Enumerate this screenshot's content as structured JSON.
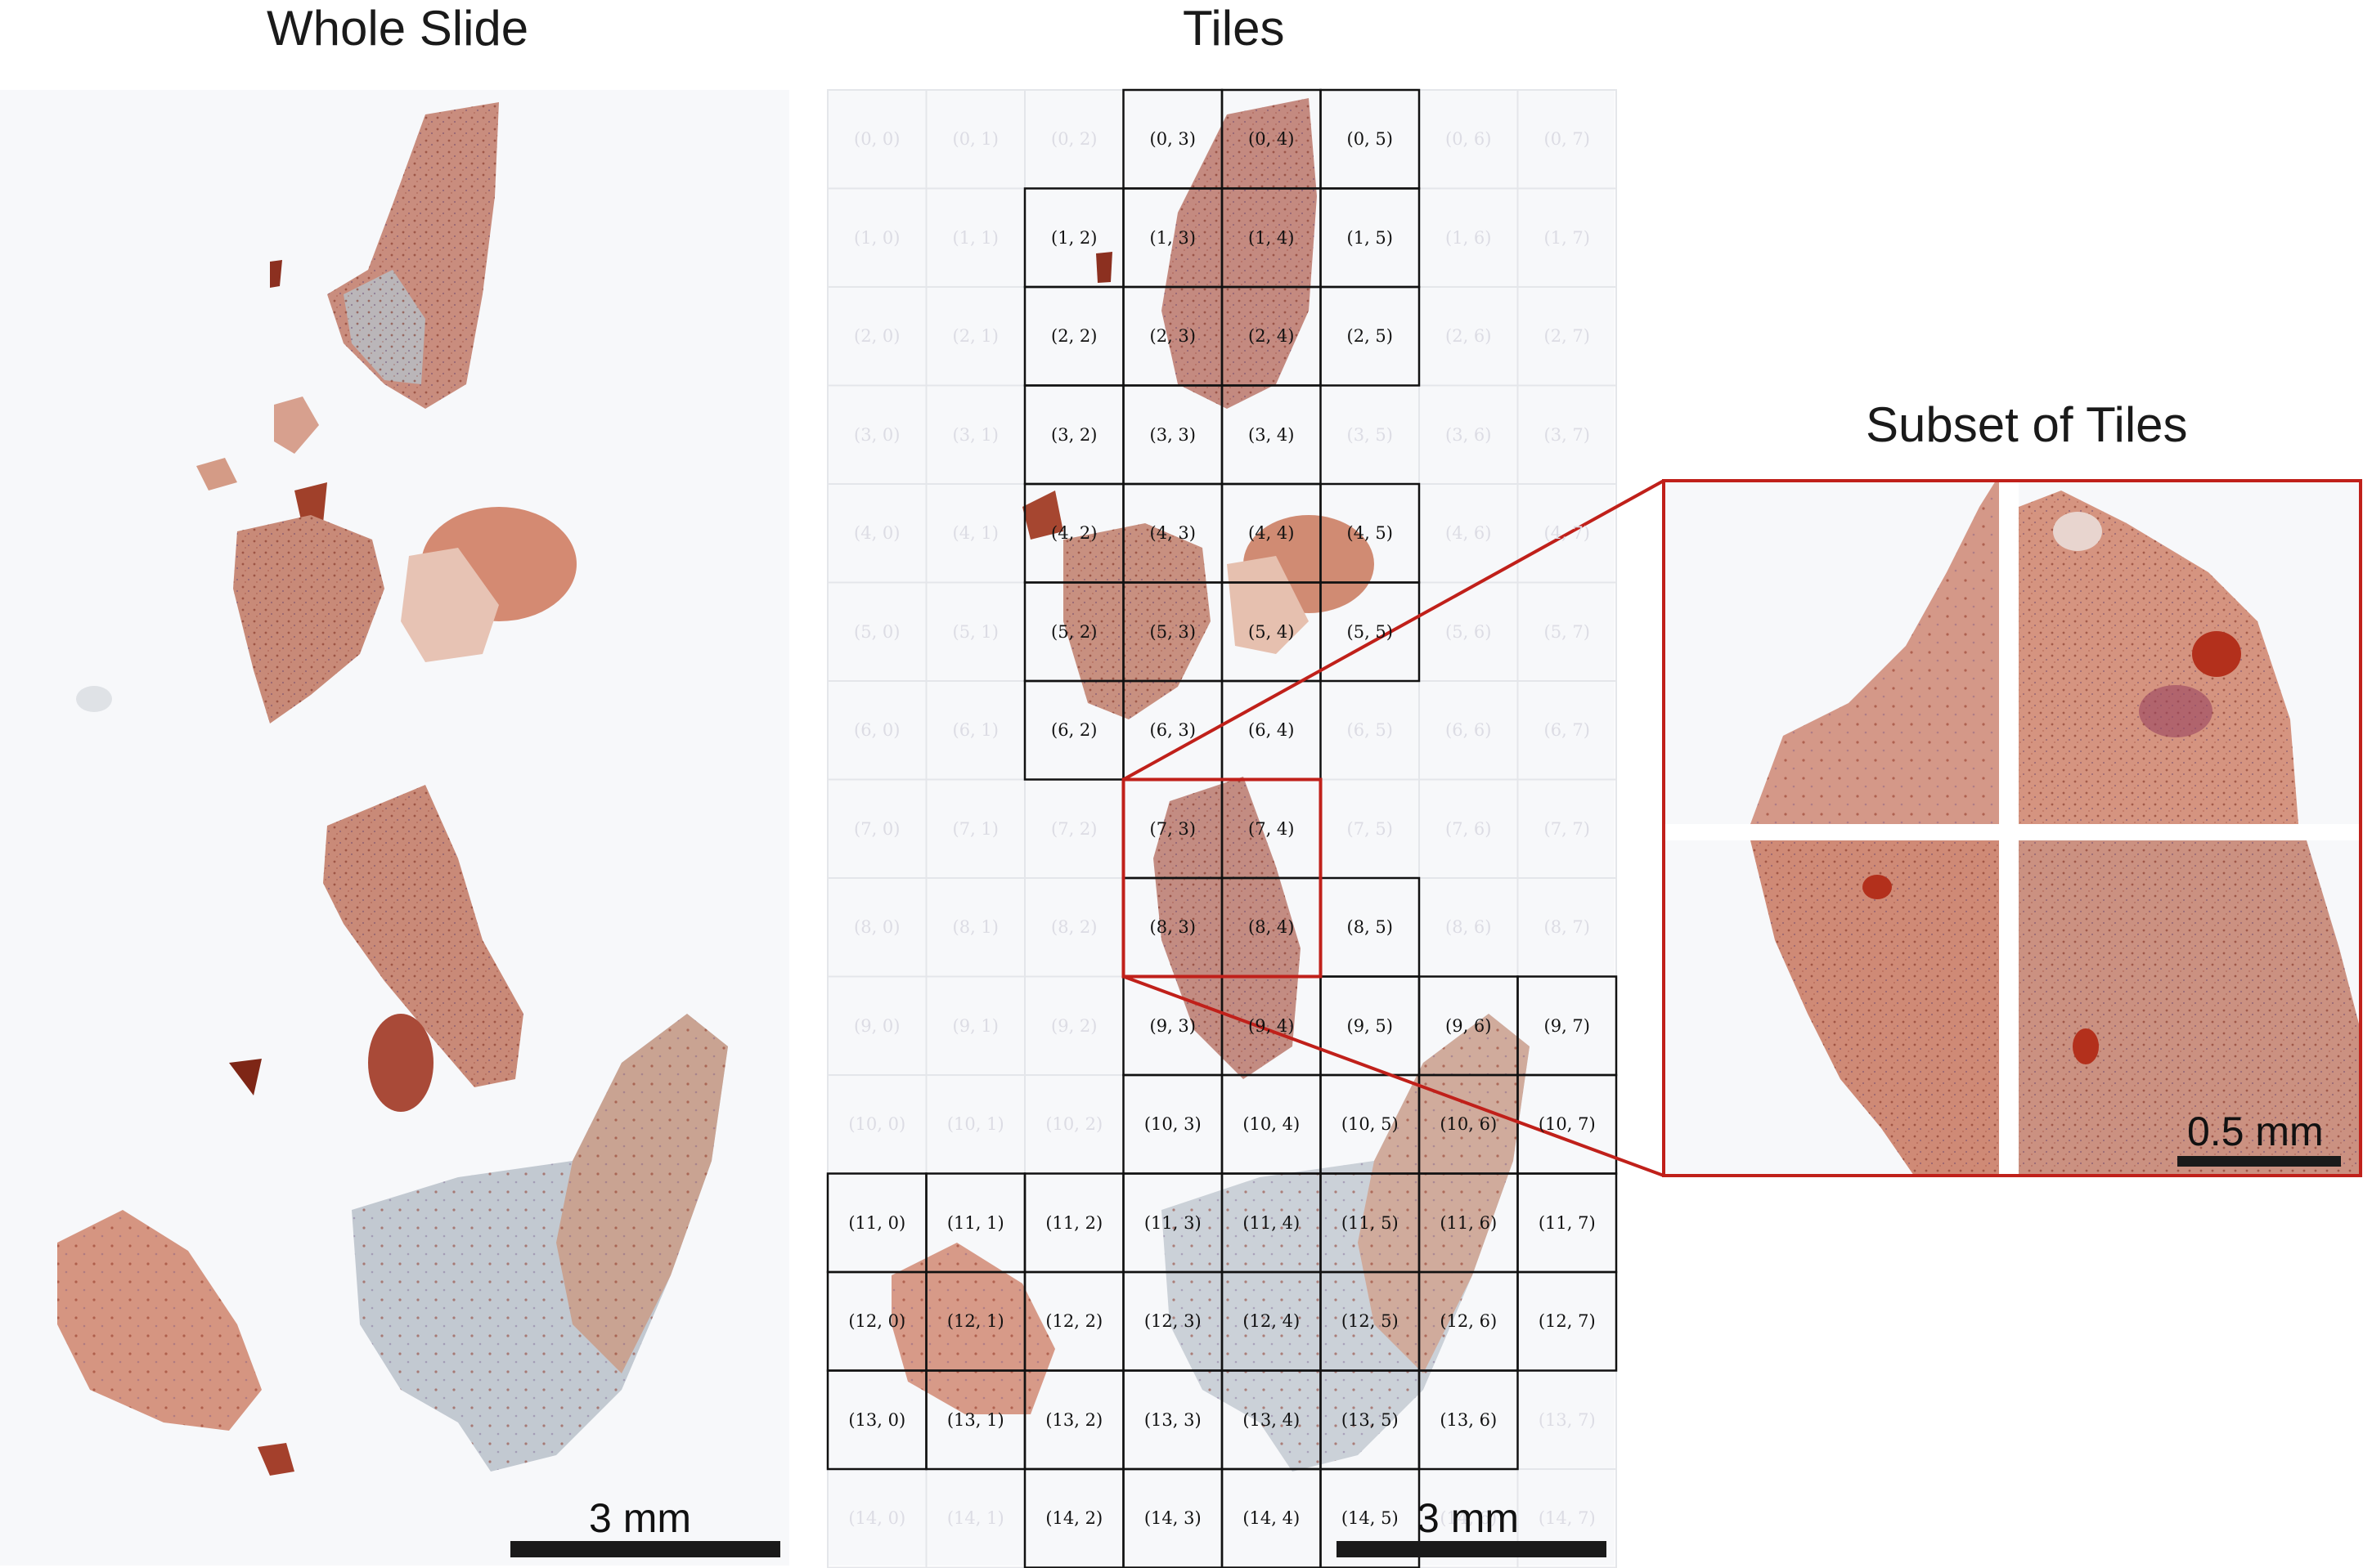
{
  "titles": {
    "whole_slide": "Whole Slide",
    "tiles": "Tiles",
    "subset": "Subset of Tiles"
  },
  "scalebars": {
    "whole_slide": "3 mm",
    "tiles": "3 mm",
    "subset": "0.5 mm"
  },
  "grid": {
    "rows": 15,
    "cols": 8,
    "selected": [
      [
        0,
        3
      ],
      [
        0,
        4
      ],
      [
        0,
        5
      ],
      [
        1,
        2
      ],
      [
        1,
        3
      ],
      [
        1,
        4
      ],
      [
        1,
        5
      ],
      [
        2,
        2
      ],
      [
        2,
        3
      ],
      [
        2,
        4
      ],
      [
        2,
        5
      ],
      [
        3,
        2
      ],
      [
        3,
        3
      ],
      [
        3,
        4
      ],
      [
        4,
        2
      ],
      [
        4,
        3
      ],
      [
        4,
        4
      ],
      [
        4,
        5
      ],
      [
        5,
        2
      ],
      [
        5,
        3
      ],
      [
        5,
        4
      ],
      [
        5,
        5
      ],
      [
        6,
        2
      ],
      [
        6,
        3
      ],
      [
        6,
        4
      ],
      [
        7,
        3
      ],
      [
        7,
        4
      ],
      [
        8,
        3
      ],
      [
        8,
        4
      ],
      [
        8,
        5
      ],
      [
        9,
        3
      ],
      [
        9,
        4
      ],
      [
        9,
        5
      ],
      [
        9,
        6
      ],
      [
        9,
        7
      ],
      [
        10,
        3
      ],
      [
        10,
        4
      ],
      [
        10,
        5
      ],
      [
        10,
        6
      ],
      [
        10,
        7
      ],
      [
        11,
        0
      ],
      [
        11,
        1
      ],
      [
        11,
        2
      ],
      [
        11,
        3
      ],
      [
        11,
        4
      ],
      [
        11,
        5
      ],
      [
        11,
        6
      ],
      [
        11,
        7
      ],
      [
        12,
        0
      ],
      [
        12,
        1
      ],
      [
        12,
        2
      ],
      [
        12,
        3
      ],
      [
        12,
        4
      ],
      [
        12,
        5
      ],
      [
        12,
        6
      ],
      [
        12,
        7
      ],
      [
        13,
        0
      ],
      [
        13,
        1
      ],
      [
        13,
        2
      ],
      [
        13,
        3
      ],
      [
        13,
        4
      ],
      [
        13,
        5
      ],
      [
        13,
        6
      ],
      [
        14,
        2
      ],
      [
        14,
        3
      ],
      [
        14,
        4
      ],
      [
        14,
        5
      ]
    ],
    "highlight": {
      "rows": [
        7,
        8
      ],
      "cols": [
        3,
        4
      ]
    }
  },
  "colors": {
    "tissue": "#c8735c",
    "tissue_dark": "#9e3a25",
    "tissue_pale": "#d9b8b0",
    "tissue_gray": "#b9c2cc",
    "highlight": "#c0201a",
    "grid_line": "#111111",
    "grid_faint": "#e4e6ea"
  }
}
